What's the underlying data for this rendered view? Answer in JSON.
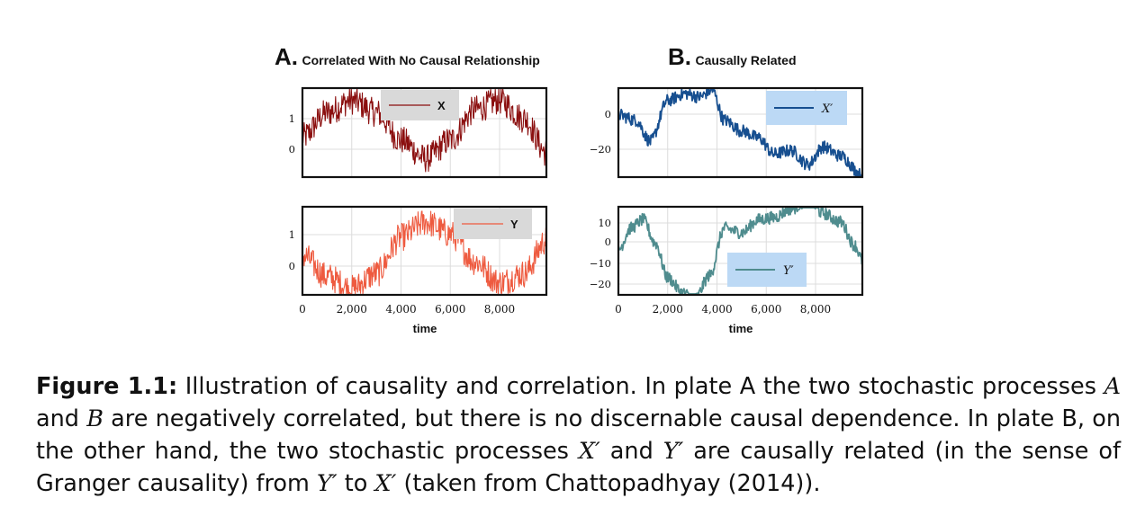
{
  "plate_a": {
    "letter": "A.",
    "title": "Correlated With No Causal Relationship"
  },
  "plate_b": {
    "letter": "B.",
    "title": "Causally Related"
  },
  "chart_data": [
    {
      "type": "line",
      "panel": "A-top",
      "legend": "X",
      "legend_position": "top-center",
      "color": "#8b0f0f",
      "x": [
        0,
        1000,
        2000,
        3000,
        4000,
        5000,
        6000,
        7000,
        8000,
        9000,
        9900
      ],
      "y": [
        0.4,
        1.2,
        1.6,
        1.2,
        0.3,
        -0.3,
        0.3,
        1.3,
        1.6,
        1.0,
        -0.1
      ],
      "xlim": [
        0,
        9900
      ],
      "ylim": [
        -0.9,
        2.0
      ],
      "yticks": [
        "0",
        "1"
      ],
      "xticks": [
        "0",
        "2,000",
        "4,000",
        "6,000",
        "8,000"
      ]
    },
    {
      "type": "line",
      "panel": "A-bottom",
      "legend": "Y",
      "legend_position": "top-right",
      "color": "#ee5a3f",
      "x": [
        0,
        1000,
        2000,
        3000,
        4000,
        5000,
        6000,
        7000,
        8000,
        9000,
        9900
      ],
      "y": [
        0.4,
        -0.3,
        -0.7,
        -0.2,
        1.0,
        1.5,
        1.1,
        0.2,
        -0.5,
        -0.2,
        0.9
      ],
      "xlim": [
        0,
        9900
      ],
      "ylim": [
        -0.9,
        2.0
      ],
      "yticks": [
        "0",
        "1"
      ],
      "xticks": [
        "0",
        "2,000",
        "4,000",
        "6,000",
        "8,000"
      ]
    },
    {
      "type": "line",
      "panel": "B-top",
      "legend": "X′",
      "legend_position": "top-right",
      "color": "#174f90",
      "x": [
        0,
        700,
        1300,
        2000,
        2700,
        3300,
        3800,
        4300,
        5000,
        5700,
        6300,
        7000,
        7700,
        8300,
        9000,
        9900
      ],
      "y": [
        0,
        -3,
        -15,
        8,
        12,
        10,
        14,
        -3,
        -9,
        -13,
        -22,
        -20,
        -28,
        -18,
        -23,
        -34
      ],
      "xlim": [
        0,
        9900
      ],
      "ylim": [
        -35,
        15
      ],
      "yticks": [
        "0",
        "−20"
      ],
      "xticks": [
        "0",
        "2,000",
        "4,000",
        "6,000",
        "8,000"
      ]
    },
    {
      "type": "line",
      "panel": "B-bottom",
      "legend": "Y′",
      "legend_position": "bottom-center",
      "color": "#4f8c8e",
      "x": [
        0,
        500,
        1000,
        1500,
        2000,
        2600,
        3100,
        3700,
        4300,
        5000,
        5700,
        6300,
        7000,
        7700,
        8300,
        9000,
        9600,
        9900
      ],
      "y": [
        -5,
        5,
        9,
        -2,
        -18,
        -25,
        -28,
        -17,
        5,
        3,
        9,
        10,
        14,
        18,
        12,
        8,
        -3,
        -10
      ],
      "xlim": [
        0,
        9900
      ],
      "ylim": [
        -26,
        15
      ],
      "yticks": [
        "10",
        "0",
        "−10",
        "−20"
      ],
      "xticks": [
        "0",
        "2,000",
        "4,000",
        "6,000",
        "8,000"
      ]
    }
  ],
  "xlabel": "time",
  "caption": {
    "label": "Figure 1.1:",
    "p1": " Illustration of causality and correlation. In plate A the two stochastic processes ",
    "A": "A",
    "p2": " and ",
    "B": "B",
    "p3": " are negatively correlated, but there is no discernable causal dependence. In plate B, on the other hand, the two stochastic processes ",
    "Xp": "X′",
    "p4": " and ",
    "Yp": "Y′",
    "p5": " are causally related (in the sense of Granger causality) from ",
    "Yp2": "Y′",
    "p6": " to ",
    "Xp2": "X′",
    "p7": " (taken from Chattopadhyay (2014))."
  },
  "colors": {
    "legend_gray": "#d9d9d9",
    "legend_blue": "#bcd9f5",
    "grid": "#dcdcdc"
  }
}
